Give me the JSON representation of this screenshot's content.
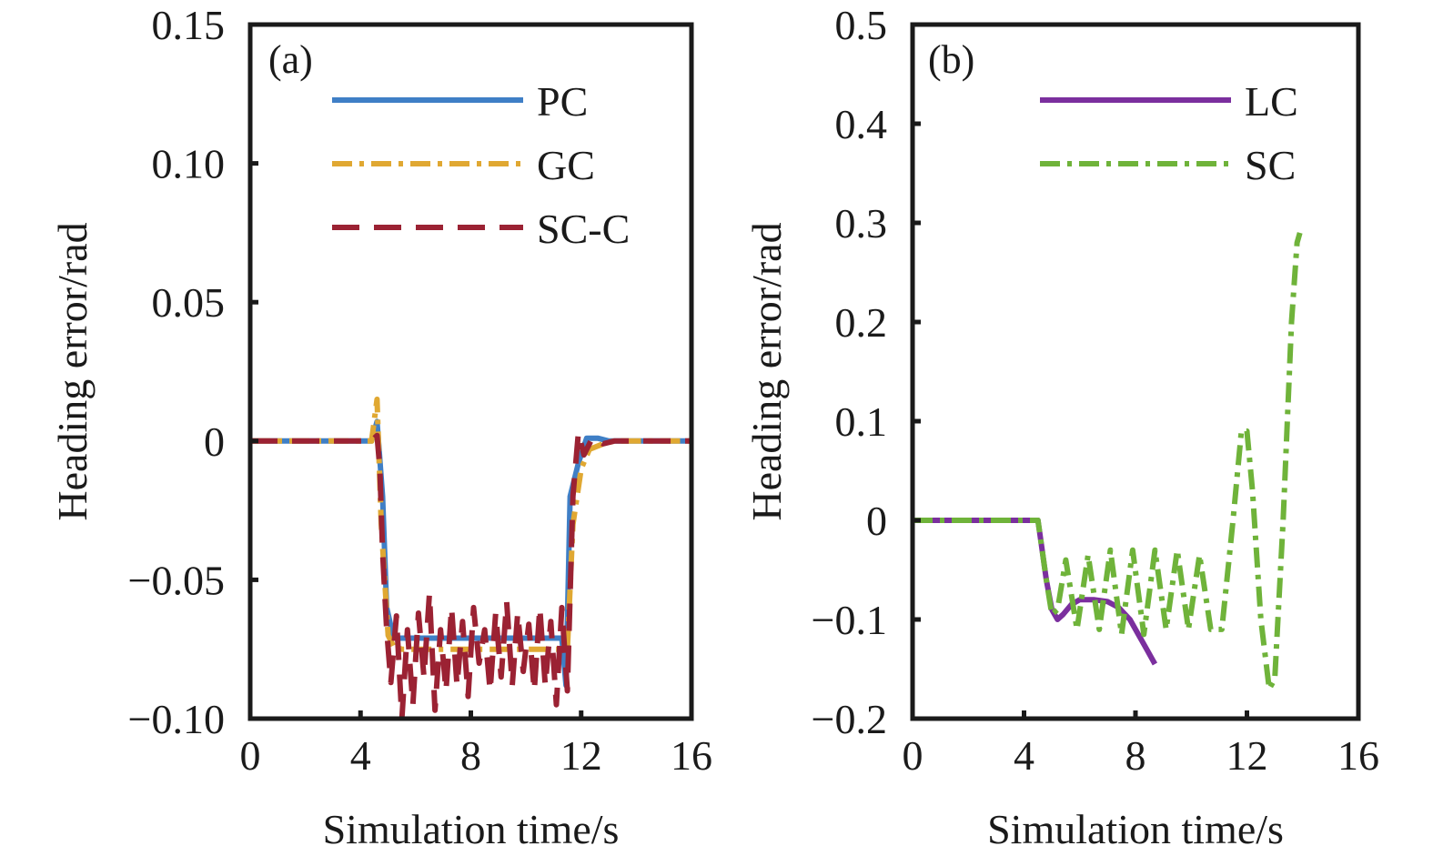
{
  "chart_data": [
    {
      "type": "line",
      "panel_label": "(a)",
      "xlabel": "Simulation time/s",
      "ylabel": "Heading error/rad",
      "xlim": [
        0,
        16
      ],
      "ylim": [
        -0.1,
        0.15
      ],
      "x_ticks": [
        0,
        4,
        8,
        12,
        16
      ],
      "x_tick_labels": [
        "0",
        "4",
        "8",
        "12",
        "16"
      ],
      "y_ticks": [
        -0.1,
        -0.05,
        0,
        0.05,
        0.1,
        0.15
      ],
      "y_tick_labels": [
        "−0.10",
        "−0.05",
        "0",
        "0.05",
        "0.10",
        "0.15"
      ],
      "grid": false,
      "legend_position": "top-right",
      "series": [
        {
          "name": "PC",
          "color": "#3f7fc6",
          "style": "solid",
          "x": [
            0,
            4.4,
            4.6,
            4.8,
            4.95,
            5.2,
            6,
            7,
            8,
            9,
            10,
            11,
            11.3,
            11.45,
            11.6,
            11.9,
            12.2,
            12.6,
            13,
            16
          ],
          "y": [
            0,
            0,
            0.007,
            -0.02,
            -0.06,
            -0.071,
            -0.071,
            -0.071,
            -0.071,
            -0.071,
            -0.071,
            -0.071,
            -0.071,
            -0.088,
            -0.02,
            -0.008,
            0.001,
            0.001,
            0,
            0
          ]
        },
        {
          "name": "GC",
          "color": "#e0a832",
          "style": "dash-dot",
          "x": [
            0,
            4.4,
            4.6,
            4.75,
            5.0,
            5.2,
            5.5,
            6,
            7,
            8,
            9,
            10,
            11,
            11.5,
            11.7,
            12.0,
            12.3,
            12.8,
            13.2,
            16
          ],
          "y": [
            0,
            0,
            0.015,
            -0.03,
            -0.07,
            -0.074,
            -0.075,
            -0.075,
            -0.075,
            -0.075,
            -0.075,
            -0.075,
            -0.075,
            -0.075,
            -0.03,
            -0.01,
            -0.003,
            -0.001,
            0,
            0
          ]
        },
        {
          "name": "SC-C",
          "color": "#9b2233",
          "style": "dashed",
          "x": [
            0,
            4.4,
            4.6,
            4.7,
            4.8,
            4.95,
            5.1,
            5.3,
            5.5,
            5.7,
            5.9,
            6.1,
            6.3,
            6.5,
            6.7,
            6.9,
            7.1,
            7.3,
            7.5,
            7.7,
            7.9,
            8.1,
            8.3,
            8.5,
            8.7,
            8.9,
            9.1,
            9.3,
            9.5,
            9.7,
            9.9,
            10.1,
            10.3,
            10.5,
            10.7,
            10.9,
            11.1,
            11.3,
            11.5,
            11.7,
            11.9,
            12.1,
            12.4,
            12.8,
            13.2,
            16
          ],
          "y": [
            0,
            0,
            0.002,
            -0.01,
            -0.04,
            -0.068,
            -0.087,
            -0.063,
            -0.1,
            -0.068,
            -0.095,
            -0.062,
            -0.085,
            -0.055,
            -0.097,
            -0.068,
            -0.09,
            -0.06,
            -0.088,
            -0.065,
            -0.092,
            -0.06,
            -0.08,
            -0.068,
            -0.09,
            -0.062,
            -0.085,
            -0.058,
            -0.088,
            -0.062,
            -0.083,
            -0.066,
            -0.09,
            -0.06,
            -0.088,
            -0.065,
            -0.095,
            -0.06,
            -0.09,
            -0.02,
            0.003,
            -0.005,
            0.001,
            -0.001,
            0,
            0
          ]
        }
      ]
    },
    {
      "type": "line",
      "panel_label": "(b)",
      "xlabel": "Simulation time/s",
      "ylabel": "Heading error/rad",
      "xlim": [
        0,
        16
      ],
      "ylim": [
        -0.2,
        0.5
      ],
      "x_ticks": [
        0,
        4,
        8,
        12,
        16
      ],
      "x_tick_labels": [
        "0",
        "4",
        "8",
        "12",
        "16"
      ],
      "y_ticks": [
        -0.2,
        -0.1,
        0,
        0.1,
        0.2,
        0.3,
        0.4,
        0.5
      ],
      "y_tick_labels": [
        "−0.2",
        "−0.1",
        "0",
        "0.1",
        "0.2",
        "0.3",
        "0.4",
        "0.5"
      ],
      "grid": false,
      "legend_position": "top-right",
      "series": [
        {
          "name": "LC",
          "color": "#7b2f9e",
          "style": "solid",
          "x": [
            0,
            4.5,
            4.6,
            4.8,
            5.0,
            5.2,
            5.4,
            5.7,
            6.0,
            6.5,
            7.0,
            7.4,
            7.8,
            8.1,
            8.4,
            8.7
          ],
          "y": [
            0,
            0,
            -0.02,
            -0.06,
            -0.09,
            -0.1,
            -0.095,
            -0.085,
            -0.08,
            -0.08,
            -0.082,
            -0.088,
            -0.1,
            -0.115,
            -0.13,
            -0.145
          ]
        },
        {
          "name": "SC",
          "color": "#6fb33a",
          "style": "dash-dot",
          "x": [
            0,
            4.5,
            4.6,
            4.8,
            5.0,
            5.2,
            5.5,
            5.9,
            6.3,
            6.7,
            7.1,
            7.5,
            7.9,
            8.3,
            8.7,
            9.1,
            9.5,
            9.9,
            10.3,
            10.7,
            11.1,
            11.5,
            11.8,
            12.0,
            12.2,
            12.5,
            12.8,
            13.0,
            13.3,
            13.6,
            13.8,
            13.9
          ],
          "y": [
            0,
            0,
            -0.02,
            -0.06,
            -0.095,
            -0.09,
            -0.04,
            -0.11,
            -0.035,
            -0.11,
            -0.03,
            -0.115,
            -0.03,
            -0.115,
            -0.03,
            -0.11,
            -0.03,
            -0.11,
            -0.035,
            -0.11,
            -0.11,
            0.0,
            0.09,
            0.09,
            0.03,
            -0.1,
            -0.17,
            -0.16,
            0.0,
            0.2,
            0.28,
            0.29
          ]
        }
      ]
    }
  ]
}
